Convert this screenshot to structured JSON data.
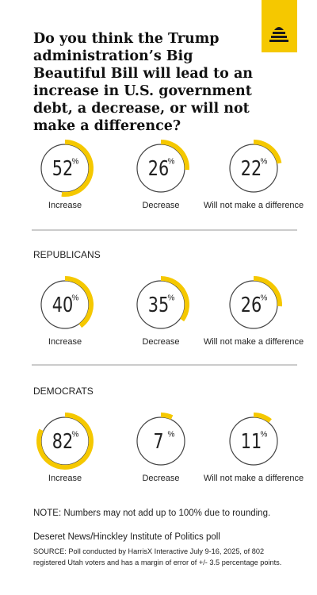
{
  "title": "Do you think the Trump administration’s Big Beautiful Bill will lead to an increase in U.S. government debt, a decrease, or will not make a difference?",
  "chart_data": [
    {
      "type": "donut",
      "categories": [
        "Increase",
        "Decrease",
        "Will not make a difference"
      ],
      "values": [
        52,
        26,
        22
      ],
      "unit": "%",
      "color": "#f5c800"
    },
    {
      "type": "donut",
      "title": "REPUBLICANS",
      "categories": [
        "Increase",
        "Decrease",
        "Will not make a difference"
      ],
      "values": [
        40,
        35,
        26
      ],
      "unit": "%",
      "color": "#f5c800"
    },
    {
      "type": "donut",
      "title": "DEMOCRATS",
      "categories": [
        "Increase",
        "Decrease",
        "Will not make a difference"
      ],
      "values": [
        82,
        7,
        11
      ],
      "unit": "%",
      "color": "#f5c800"
    }
  ],
  "note": "NOTE: Numbers may not add up to 100% due to rounding.",
  "source_title": "Deseret News/Hinckley Institute of Politics poll",
  "source": "SOURCE: Poll conducted by HarrisX Interactive July 9-16, 2025, of 802 registered Utah voters and has a margin of error of +/- 3.5 percentage points."
}
